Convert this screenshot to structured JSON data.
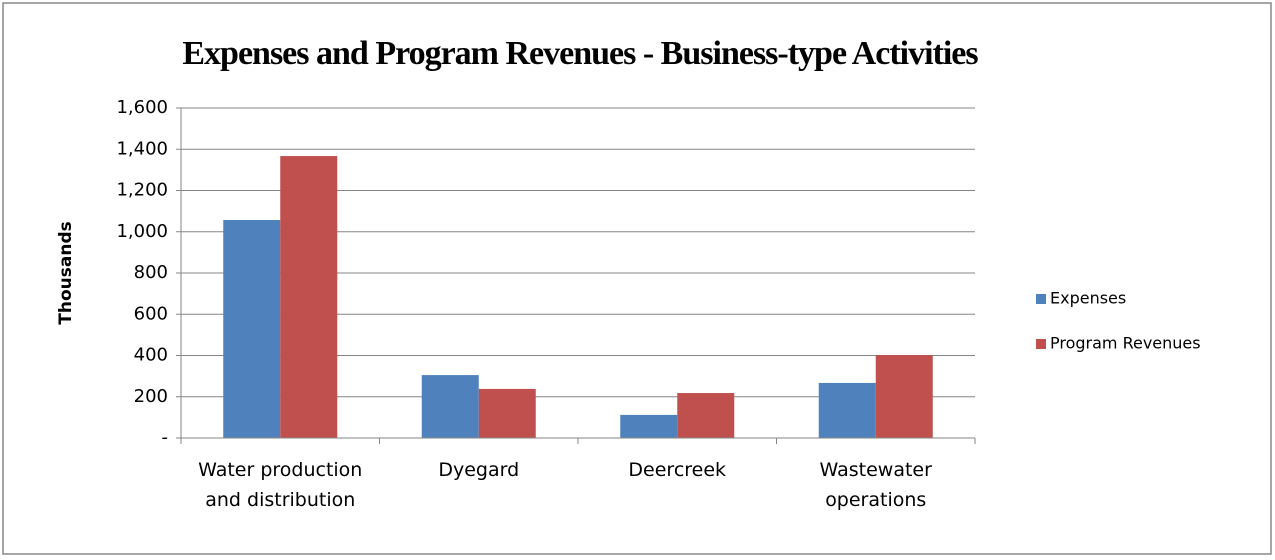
{
  "chart_data": {
    "type": "bar",
    "title": "Expenses and Program Revenues - Business-type Activities",
    "y_label": "Thousands",
    "categories": [
      "Water production and distribution",
      "Dyegard",
      "Deercreek",
      "Wastewater operations"
    ],
    "series": [
      {
        "name": "Expenses",
        "color": "#4f81bd",
        "values": [
          1057,
          305,
          112,
          267
        ]
      },
      {
        "name": "Program Revenues",
        "color": "#c0504d",
        "values": [
          1367,
          238,
          218,
          402
        ]
      }
    ],
    "ylim": [
      0,
      1600
    ],
    "yticks": [
      {
        "value": 0,
        "label": "-"
      },
      200,
      400,
      600,
      800,
      {
        "value": 1000,
        "label": "1,000"
      },
      {
        "value": 1200,
        "label": "1,200"
      },
      {
        "value": 1400,
        "label": "1,400"
      },
      {
        "value": 1600,
        "label": "1,600"
      }
    ],
    "grid": true,
    "legend": "right"
  }
}
